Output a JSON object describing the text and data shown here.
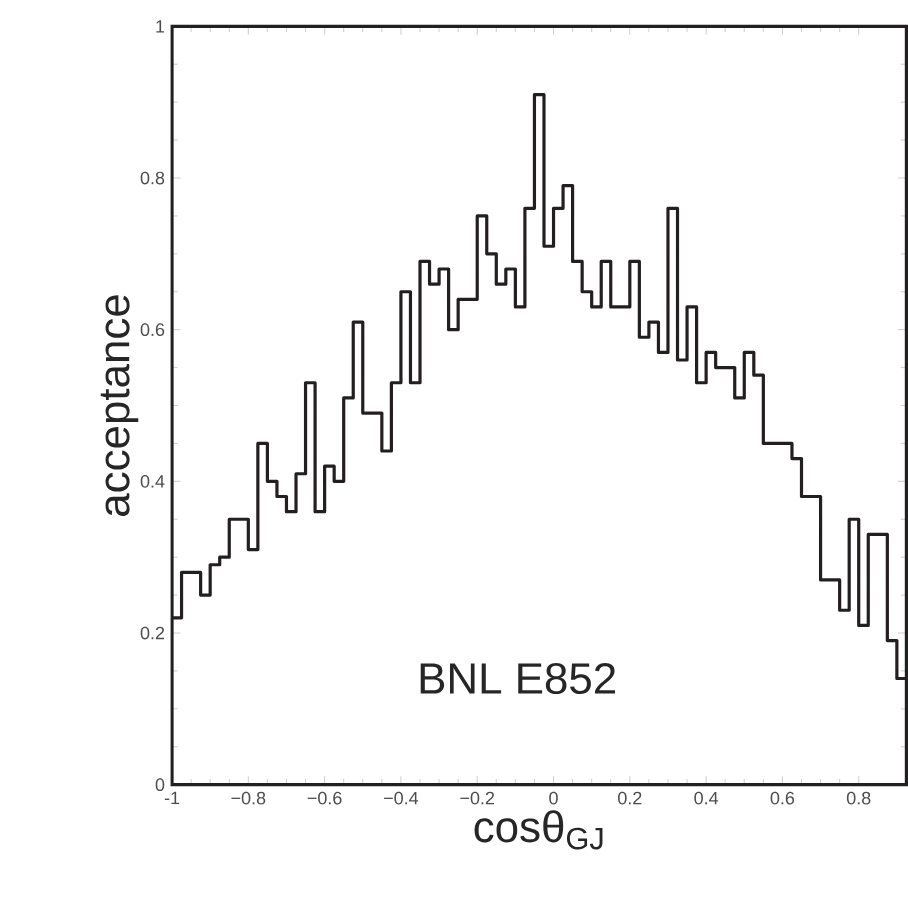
{
  "chart_data": {
    "type": "histogram",
    "xlabel": "cosθ$_{GJ}$",
    "ylabel": "acceptance",
    "annotations": [
      "BNL E852"
    ],
    "color": "#231f20",
    "bins": [
      -1,
      -0.975,
      -0.95,
      -0.925,
      -0.9,
      -0.875,
      -0.85,
      -0.825,
      -0.8,
      -0.775,
      -0.75,
      -0.725,
      -0.7,
      -0.675,
      -0.65,
      -0.625,
      -0.6,
      -0.575,
      -0.55,
      -0.525,
      -0.5,
      -0.475,
      -0.45,
      -0.425,
      -0.4,
      -0.375,
      -0.35,
      -0.325,
      -0.3,
      -0.275,
      -0.25,
      -0.225,
      -0.2,
      -0.175,
      -0.15,
      -0.125,
      -0.1,
      -0.075,
      -0.05,
      -0.025,
      0,
      0.025,
      0.05,
      0.075,
      0.1,
      0.125,
      0.15,
      0.175,
      0.2,
      0.225,
      0.25,
      0.275,
      0.3,
      0.325,
      0.35,
      0.375,
      0.4,
      0.425,
      0.45,
      0.475,
      0.5,
      0.525,
      0.55,
      0.575,
      0.6,
      0.625,
      0.65,
      0.675,
      0.7,
      0.725,
      0.75,
      0.775,
      0.8,
      0.825,
      0.85,
      0.875,
      0.9,
      0.925
    ],
    "values": [
      0.22,
      0.28,
      0.28,
      0.25,
      0.29,
      0.3,
      0.35,
      0.35,
      0.31,
      0.45,
      0.4,
      0.38,
      0.36,
      0.41,
      0.53,
      0.36,
      0.42,
      0.4,
      0.51,
      0.61,
      0.49,
      0.49,
      0.44,
      0.53,
      0.65,
      0.53,
      0.69,
      0.66,
      0.68,
      0.6,
      0.64,
      0.64,
      0.75,
      0.7,
      0.66,
      0.68,
      0.63,
      0.76,
      0.91,
      0.71,
      0.76,
      0.79,
      0.69,
      0.65,
      0.63,
      0.69,
      0.63,
      0.63,
      0.69,
      0.59,
      0.61,
      0.57,
      0.76,
      0.56,
      0.63,
      0.53,
      0.57,
      0.55,
      0.55,
      0.51,
      0.57,
      0.54,
      0.45,
      0.45,
      0.45,
      0.43,
      0.38,
      0.38,
      0.27,
      0.27,
      0.23,
      0.35,
      0.21,
      0.33,
      0.33,
      0.19,
      0.14
    ],
    "xlim": [
      -1,
      0.925
    ],
    "ylim": [
      0,
      1
    ],
    "xticks": [
      -1,
      {
        "value": -0.8,
        "label": "−0.8"
      },
      {
        "value": -0.6,
        "label": "−0.6"
      },
      {
        "value": -0.4,
        "label": "−0.4"
      },
      {
        "value": -0.2,
        "label": "−0.2"
      },
      0,
      0.2,
      0.4,
      0.6,
      0.8
    ],
    "yticks": [
      0,
      0.2,
      0.4,
      0.6,
      0.8,
      1
    ]
  }
}
